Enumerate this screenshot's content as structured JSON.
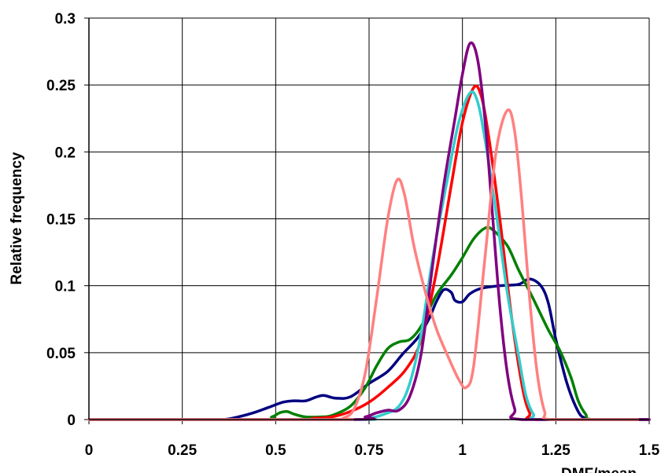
{
  "chart_data": {
    "type": "line",
    "title": "",
    "xlabel": "DMF/mean",
    "ylabel": "Relative frequency",
    "xlim": [
      0,
      1.5
    ],
    "ylim": [
      0,
      0.3
    ],
    "grid": true,
    "x_ticks": [
      "0",
      "0.25",
      "0.5",
      "0.75",
      "1",
      "1.25",
      "1.5"
    ],
    "y_ticks": [
      "0",
      "0.05",
      "0.1",
      "0.15",
      "0.2",
      "0.25",
      "0.3"
    ],
    "series": [
      {
        "color": "#000080",
        "points": [
          [
            0,
            0
          ],
          [
            0.3,
            0
          ],
          [
            0.36,
            0
          ],
          [
            0.4,
            0.002
          ],
          [
            0.44,
            0.005
          ],
          [
            0.48,
            0.009
          ],
          [
            0.52,
            0.013
          ],
          [
            0.55,
            0.014
          ],
          [
            0.58,
            0.014
          ],
          [
            0.61,
            0.017
          ],
          [
            0.63,
            0.018
          ],
          [
            0.66,
            0.016
          ],
          [
            0.7,
            0.017
          ],
          [
            0.75,
            0.027
          ],
          [
            0.8,
            0.036
          ],
          [
            0.84,
            0.049
          ],
          [
            0.88,
            0.061
          ],
          [
            0.91,
            0.075
          ],
          [
            0.93,
            0.088
          ],
          [
            0.95,
            0.097
          ],
          [
            0.97,
            0.095
          ],
          [
            0.98,
            0.089
          ],
          [
            1.0,
            0.088
          ],
          [
            1.02,
            0.094
          ],
          [
            1.05,
            0.098
          ],
          [
            1.1,
            0.1
          ],
          [
            1.15,
            0.101
          ],
          [
            1.18,
            0.105
          ],
          [
            1.21,
            0.1
          ],
          [
            1.23,
            0.087
          ],
          [
            1.25,
            0.06
          ],
          [
            1.28,
            0.027
          ],
          [
            1.31,
            0.006
          ],
          [
            1.33,
            0.001
          ],
          [
            1.36,
            0
          ],
          [
            1.5,
            0
          ]
        ]
      },
      {
        "color": "#008000",
        "points": [
          [
            0,
            0
          ],
          [
            0.45,
            0
          ],
          [
            0.49,
            0.002
          ],
          [
            0.51,
            0.005
          ],
          [
            0.53,
            0.006
          ],
          [
            0.55,
            0.004
          ],
          [
            0.58,
            0.002
          ],
          [
            0.62,
            0.002
          ],
          [
            0.65,
            0.003
          ],
          [
            0.7,
            0.01
          ],
          [
            0.74,
            0.024
          ],
          [
            0.77,
            0.04
          ],
          [
            0.8,
            0.053
          ],
          [
            0.83,
            0.058
          ],
          [
            0.86,
            0.06
          ],
          [
            0.89,
            0.07
          ],
          [
            0.93,
            0.093
          ],
          [
            0.97,
            0.108
          ],
          [
            1.0,
            0.121
          ],
          [
            1.03,
            0.135
          ],
          [
            1.06,
            0.143
          ],
          [
            1.08,
            0.142
          ],
          [
            1.12,
            0.13
          ],
          [
            1.15,
            0.112
          ],
          [
            1.19,
            0.09
          ],
          [
            1.23,
            0.067
          ],
          [
            1.26,
            0.052
          ],
          [
            1.29,
            0.032
          ],
          [
            1.31,
            0.014
          ],
          [
            1.33,
            0.004
          ],
          [
            1.35,
            0
          ],
          [
            1.5,
            0
          ]
        ]
      },
      {
        "color": "#ff0000",
        "points": [
          [
            0,
            0
          ],
          [
            0.55,
            0
          ],
          [
            0.6,
            0.001
          ],
          [
            0.65,
            0.002
          ],
          [
            0.7,
            0.006
          ],
          [
            0.75,
            0.013
          ],
          [
            0.8,
            0.024
          ],
          [
            0.85,
            0.038
          ],
          [
            0.89,
            0.06
          ],
          [
            0.93,
            0.11
          ],
          [
            0.97,
            0.175
          ],
          [
            1.0,
            0.222
          ],
          [
            1.03,
            0.248
          ],
          [
            1.05,
            0.242
          ],
          [
            1.07,
            0.212
          ],
          [
            1.1,
            0.15
          ],
          [
            1.13,
            0.08
          ],
          [
            1.16,
            0.025
          ],
          [
            1.18,
            0.005
          ],
          [
            1.2,
            0
          ],
          [
            1.5,
            0
          ]
        ]
      },
      {
        "color": "#33cccc",
        "points": [
          [
            0,
            0
          ],
          [
            0.7,
            0
          ],
          [
            0.75,
            0.001
          ],
          [
            0.79,
            0.004
          ],
          [
            0.83,
            0.01
          ],
          [
            0.86,
            0.028
          ],
          [
            0.89,
            0.065
          ],
          [
            0.92,
            0.12
          ],
          [
            0.96,
            0.18
          ],
          [
            0.99,
            0.222
          ],
          [
            1.02,
            0.244
          ],
          [
            1.04,
            0.238
          ],
          [
            1.06,
            0.21
          ],
          [
            1.09,
            0.155
          ],
          [
            1.12,
            0.095
          ],
          [
            1.15,
            0.048
          ],
          [
            1.17,
            0.018
          ],
          [
            1.19,
            0.004
          ],
          [
            1.21,
            0
          ],
          [
            1.5,
            0
          ]
        ]
      },
      {
        "color": "#800080",
        "points": [
          [
            0,
            0
          ],
          [
            0.7,
            0
          ],
          [
            0.74,
            0.002
          ],
          [
            0.77,
            0.005
          ],
          [
            0.8,
            0.007
          ],
          [
            0.83,
            0.007
          ],
          [
            0.86,
            0.018
          ],
          [
            0.89,
            0.05
          ],
          [
            0.92,
            0.115
          ],
          [
            0.95,
            0.175
          ],
          [
            0.98,
            0.225
          ],
          [
            1.0,
            0.258
          ],
          [
            1.02,
            0.281
          ],
          [
            1.04,
            0.27
          ],
          [
            1.06,
            0.225
          ],
          [
            1.08,
            0.155
          ],
          [
            1.1,
            0.085
          ],
          [
            1.12,
            0.035
          ],
          [
            1.14,
            0.008
          ],
          [
            1.16,
            0
          ],
          [
            1.5,
            0
          ]
        ]
      },
      {
        "color": "#ff8080",
        "points": [
          [
            0,
            0
          ],
          [
            0.65,
            0
          ],
          [
            0.68,
            0.001
          ],
          [
            0.71,
            0.008
          ],
          [
            0.74,
            0.035
          ],
          [
            0.77,
            0.09
          ],
          [
            0.8,
            0.15
          ],
          [
            0.825,
            0.179
          ],
          [
            0.845,
            0.168
          ],
          [
            0.87,
            0.13
          ],
          [
            0.9,
            0.096
          ],
          [
            0.93,
            0.068
          ],
          [
            0.96,
            0.048
          ],
          [
            0.99,
            0.03
          ],
          [
            1.01,
            0.024
          ],
          [
            1.03,
            0.04
          ],
          [
            1.06,
            0.12
          ],
          [
            1.09,
            0.2
          ],
          [
            1.12,
            0.231
          ],
          [
            1.14,
            0.215
          ],
          [
            1.16,
            0.16
          ],
          [
            1.18,
            0.09
          ],
          [
            1.2,
            0.035
          ],
          [
            1.22,
            0.006
          ],
          [
            1.24,
            0
          ],
          [
            1.47,
            0
          ]
        ]
      }
    ]
  }
}
